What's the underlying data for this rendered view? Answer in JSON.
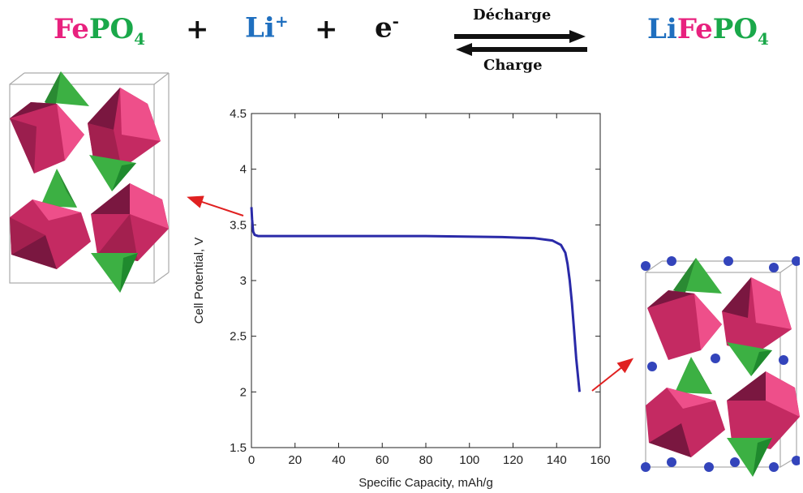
{
  "equation": {
    "reactant": {
      "fe": "Fe",
      "po": "PO",
      "sub": "4"
    },
    "plus1": "+",
    "li": {
      "base": "Li",
      "sup": "+"
    },
    "plus2": "+",
    "electron": {
      "base": "e",
      "sup": "-"
    },
    "arrow_top": "Décharge",
    "arrow_bottom": "Charge",
    "product": {
      "li": "Li",
      "fe": "Fe",
      "po": "PO",
      "sub": "4"
    }
  },
  "colors": {
    "fe": "#e8217e",
    "po": "#1aa84a",
    "li": "#1f6fbf",
    "curve": "#2a2aa8",
    "pointer_arrow": "#e02020",
    "octa_dark": "#7a1740",
    "octa_mid": "#c42a62",
    "octa_light": "#ee4f8a",
    "tetra": "#3cb043",
    "lithium_atom": "#3344bb"
  },
  "structures": {
    "left": "FePO4 crystal structure (octahedra and tetrahedra)",
    "right": "LiFePO4 crystal structure with lithium ions"
  },
  "chart_data": {
    "type": "line",
    "xlabel": "Specific Capacity, mAh/g",
    "ylabel": "Cell Potential, V",
    "xlim": [
      0,
      160
    ],
    "ylim": [
      1.5,
      4.5
    ],
    "xticks": [
      0,
      20,
      40,
      60,
      80,
      100,
      120,
      140,
      160
    ],
    "yticks": [
      1.5,
      2,
      2.5,
      3,
      3.5,
      4,
      4.5
    ],
    "ytick_labels": [
      "1.5",
      "2",
      "2.5",
      "3",
      "3.5",
      "4",
      "4.5"
    ],
    "grid": false,
    "series": [
      {
        "x": [
          0,
          0.3,
          0.8,
          1.5,
          3,
          10,
          40,
          80,
          115,
          130,
          138,
          142,
          144,
          145,
          146,
          147,
          148,
          149,
          150.5
        ],
        "values": [
          3.66,
          3.55,
          3.44,
          3.41,
          3.4,
          3.4,
          3.4,
          3.4,
          3.39,
          3.38,
          3.36,
          3.32,
          3.25,
          3.15,
          3.0,
          2.8,
          2.55,
          2.3,
          2.0
        ]
      }
    ]
  }
}
